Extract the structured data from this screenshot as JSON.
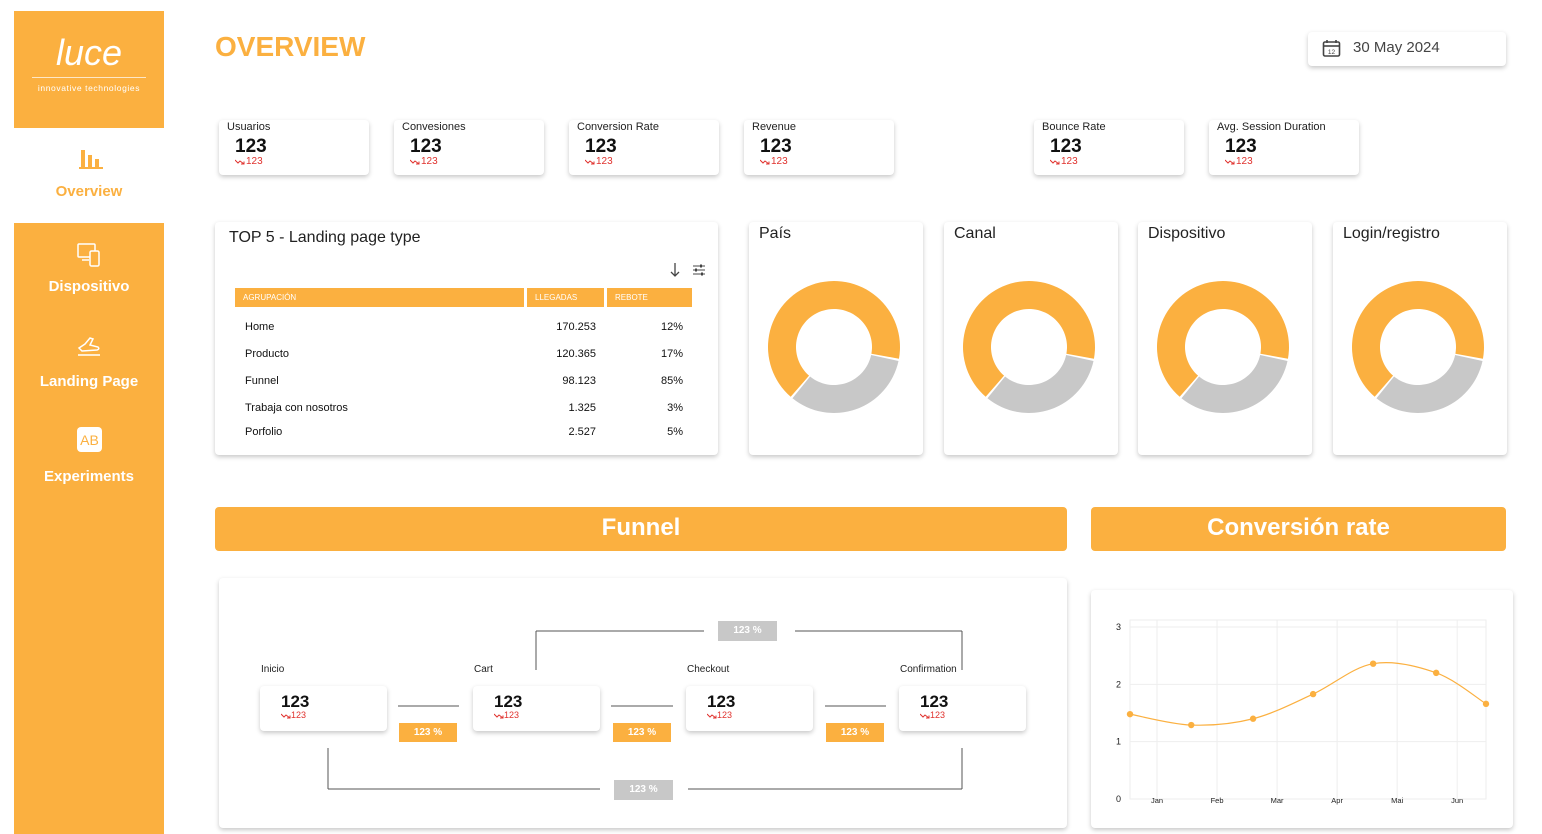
{
  "sidebar": {
    "logo": "luce",
    "tagline": "innovative technologies",
    "nav": [
      "Overview",
      "Dispositivo",
      "Landing Page",
      "Experiments"
    ]
  },
  "header": {
    "title": "OVERVIEW",
    "date": "30 May 2024"
  },
  "kpis": [
    {
      "label": "Usuarios",
      "value": 123,
      "delta": 123
    },
    {
      "label": "Convesiones",
      "value": 123,
      "delta": 123
    },
    {
      "label": "Conversion Rate",
      "value": 123,
      "delta": 123
    },
    {
      "label": "Revenue",
      "value": 123,
      "delta": 123
    },
    {
      "label": "Bounce Rate",
      "value": 123,
      "delta": 123
    },
    {
      "label": "Avg. Session Duration",
      "value": 123,
      "delta": 123
    }
  ],
  "landing_table": {
    "title": "TOP 5 - Landing page type",
    "columns": [
      "AGRUPACIÓN",
      "LLEGADAS",
      "REBOTE"
    ],
    "rows": [
      [
        "Home",
        "170.253",
        "12%"
      ],
      [
        "Producto",
        "120.365",
        "17%"
      ],
      [
        "Funnel",
        "98.123",
        "85%"
      ],
      [
        "Trabaja con nosotros",
        "1.325",
        "3%"
      ],
      [
        "Porfolio",
        "2.527",
        "5%"
      ]
    ]
  },
  "chart_data": [
    {
      "type": "pie",
      "title": "País",
      "values": [
        67,
        33
      ],
      "colors": [
        "#FBB040",
        "#C8C8C8"
      ]
    },
    {
      "type": "pie",
      "title": "Canal",
      "values": [
        67,
        33
      ],
      "colors": [
        "#FBB040",
        "#C8C8C8"
      ]
    },
    {
      "type": "pie",
      "title": "Dispositivo",
      "values": [
        67,
        33
      ],
      "colors": [
        "#FBB040",
        "#C8C8C8"
      ]
    },
    {
      "type": "pie",
      "title": "Login/registro",
      "values": [
        67,
        33
      ],
      "colors": [
        "#FBB040",
        "#C8C8C8"
      ]
    },
    {
      "type": "line",
      "title": "Conversión rate",
      "x": [
        0.55,
        1.57,
        2.6,
        3.6,
        4.6,
        5.65,
        6.48
      ],
      "values": [
        1.48,
        1.29,
        1.4,
        1.83,
        2.36,
        2.2,
        1.66
      ],
      "color": "#FBB040",
      "xlim": [
        0.55,
        6.48
      ],
      "xticks": [
        {
          "value": 1,
          "label": "Jan"
        },
        {
          "value": 2,
          "label": "Feb"
        },
        {
          "value": 3,
          "label": "Mar"
        },
        {
          "value": 4,
          "label": "Apr"
        },
        {
          "value": 5,
          "label": "Mai"
        },
        {
          "value": 6,
          "label": "Jun"
        }
      ],
      "ylim": [
        0,
        3
      ],
      "yticks": [
        0,
        1,
        2,
        3
      ],
      "grid": true
    }
  ],
  "funnel": {
    "title": "Funnel",
    "steps": [
      {
        "label": "Inicio",
        "value": 123,
        "delta": 123
      },
      {
        "label": "Cart",
        "value": 123,
        "delta": 123
      },
      {
        "label": "Checkout",
        "value": 123,
        "delta": 123
      },
      {
        "label": "Confirmation",
        "value": 123,
        "delta": 123
      }
    ],
    "step_rates": [
      "123 %",
      "123 %",
      "123 %"
    ],
    "overall_rates": [
      "123 %",
      "123 %"
    ]
  }
}
